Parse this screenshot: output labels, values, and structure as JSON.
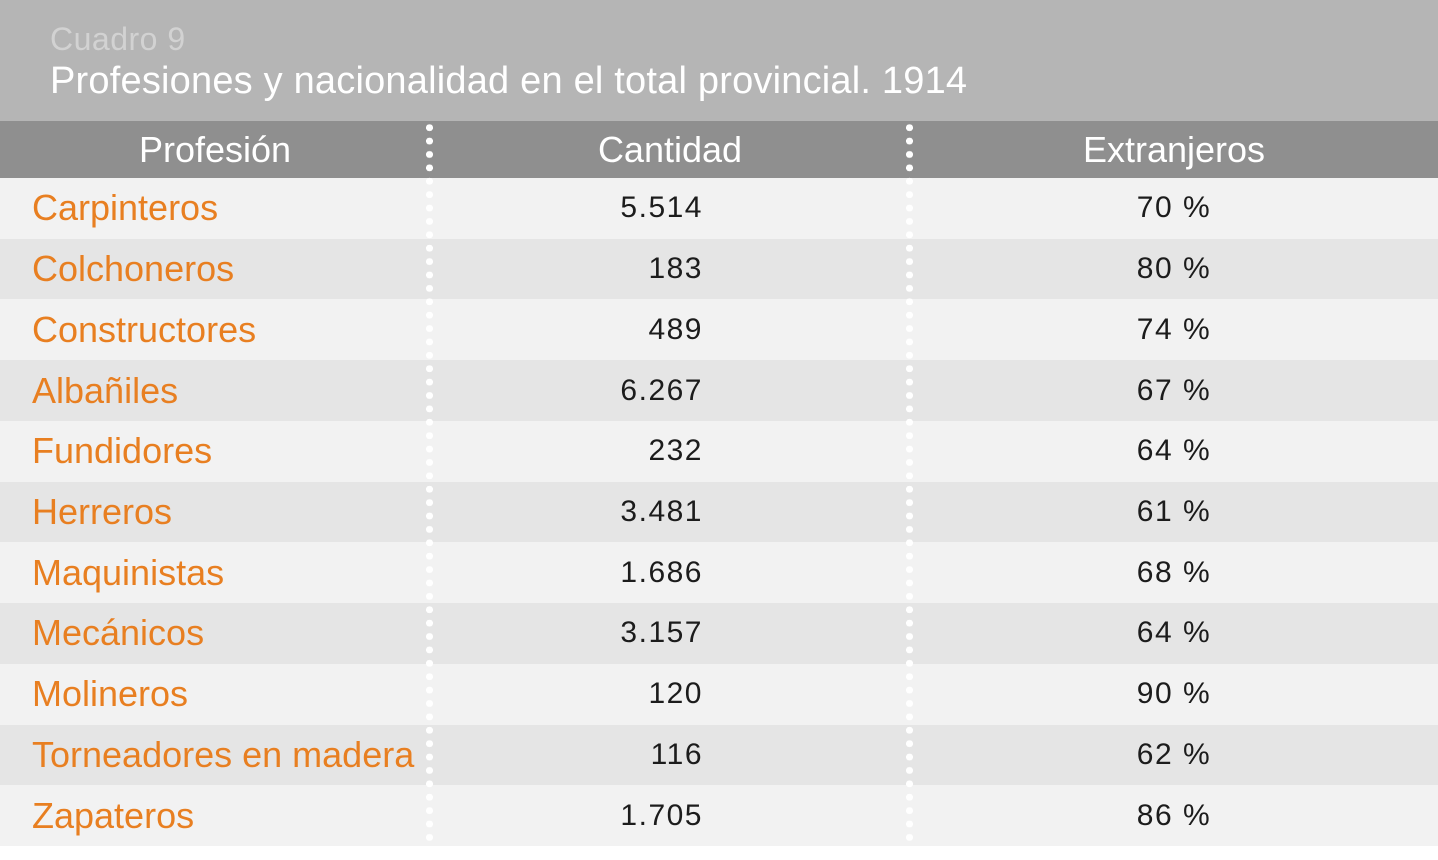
{
  "header": {
    "label": "Cuadro 9",
    "title": "Profesiones y nacionalidad en el total provincial. 1914"
  },
  "table": {
    "columns": [
      "Profesión",
      "Cantidad",
      "Extranjeros"
    ],
    "rows": [
      {
        "profesion": "Carpinteros",
        "cantidad": "5.514",
        "extranjeros": "70 %"
      },
      {
        "profesion": "Colchoneros",
        "cantidad": "183",
        "extranjeros": "80 %"
      },
      {
        "profesion": "Constructores",
        "cantidad": "489",
        "extranjeros": "74 %"
      },
      {
        "profesion": "Albañiles",
        "cantidad": "6.267",
        "extranjeros": "67 %"
      },
      {
        "profesion": "Fundidores",
        "cantidad": "232",
        "extranjeros": "64 %"
      },
      {
        "profesion": "Herreros",
        "cantidad": "3.481",
        "extranjeros": "61 %"
      },
      {
        "profesion": "Maquinistas",
        "cantidad": "1.686",
        "extranjeros": "68 %"
      },
      {
        "profesion": "Mecánicos",
        "cantidad": "3.157",
        "extranjeros": "64 %"
      },
      {
        "profesion": "Molineros",
        "cantidad": "120",
        "extranjeros": "90 %"
      },
      {
        "profesion": "Torneadores en madera",
        "cantidad": "116",
        "extranjeros": "62 %"
      },
      {
        "profesion": "Zapateros",
        "cantidad": "1.705",
        "extranjeros": "86 %"
      }
    ]
  },
  "chart_data": {
    "type": "table",
    "title": "Cuadro 9 — Profesiones y nacionalidad en el total provincial. 1914",
    "columns": [
      "Profesión",
      "Cantidad",
      "Extranjeros"
    ],
    "categories": [
      "Carpinteros",
      "Colchoneros",
      "Constructores",
      "Albañiles",
      "Fundidores",
      "Herreros",
      "Maquinistas",
      "Mecánicos",
      "Molineros",
      "Torneadores en madera",
      "Zapateros"
    ],
    "series": [
      {
        "name": "Cantidad",
        "values": [
          5514,
          183,
          489,
          6267,
          232,
          3481,
          1686,
          3157,
          120,
          116,
          1705
        ]
      },
      {
        "name": "Extranjeros (%)",
        "values": [
          70,
          80,
          74,
          67,
          64,
          61,
          68,
          64,
          90,
          62,
          86
        ]
      }
    ]
  },
  "colors": {
    "title_band_bg": "#b5b5b5",
    "title_label": "#d2d2d2",
    "title_text": "#ffffff",
    "header_bg": "#8f8f8f",
    "header_text": "#ffffff",
    "row_light": "#f2f2f2",
    "row_dark": "#e5e5e5",
    "profession_orange": "#e87f21",
    "value_text": "#1c1c1c",
    "separator_dot": "#ffffff"
  }
}
